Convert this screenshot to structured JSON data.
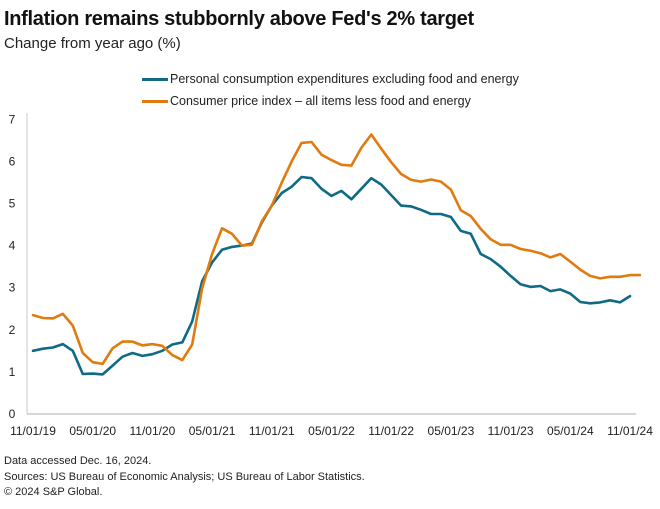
{
  "header": {
    "title": "Inflation remains stubbornly above Fed's 2% target",
    "subtitle": "Change from year ago (%)"
  },
  "footer": {
    "lines": [
      "Data accessed Dec. 16, 2024.",
      "Sources: US Bureau of Economic Analysis; US Bureau of Labor Statistics.",
      "© 2024 S&P Global."
    ]
  },
  "chart_data": {
    "type": "line",
    "title": "Inflation remains stubbornly above Fed's 2% target",
    "subtitle": "Change from year ago (%)",
    "xlabel": "",
    "ylabel": "",
    "ylim": [
      0,
      7
    ],
    "yticks": [
      "0",
      "1",
      "2",
      "3",
      "4",
      "5",
      "6",
      "7"
    ],
    "x_start": "2019-11",
    "x_frequency": "monthly",
    "xticks": [
      "11/01/19",
      "05/01/20",
      "11/01/20",
      "05/01/21",
      "11/01/21",
      "05/01/22",
      "11/01/22",
      "05/01/23",
      "11/01/23",
      "05/01/24",
      "11/01/24"
    ],
    "grid": false,
    "legend_position": "top-center",
    "series": [
      {
        "name": "Personal consumption expenditures excluding food and energy",
        "color": "#0e6a85",
        "values": [
          1.5,
          1.55,
          1.58,
          1.66,
          1.5,
          0.95,
          0.96,
          0.94,
          1.15,
          1.36,
          1.45,
          1.38,
          1.42,
          1.5,
          1.65,
          1.7,
          2.2,
          3.15,
          3.6,
          3.9,
          3.97,
          4.0,
          4.05,
          4.55,
          4.95,
          5.25,
          5.4,
          5.63,
          5.6,
          5.35,
          5.18,
          5.3,
          5.1,
          5.35,
          5.6,
          5.45,
          5.2,
          4.95,
          4.93,
          4.85,
          4.75,
          4.75,
          4.68,
          4.35,
          4.28,
          3.8,
          3.68,
          3.5,
          3.28,
          3.08,
          3.02,
          3.04,
          2.92,
          2.96,
          2.86,
          2.66,
          2.63,
          2.65,
          2.7,
          2.65,
          2.8
        ]
      },
      {
        "name": "Consumer price index – all items less food and energy",
        "color": "#e07b10",
        "values": [
          2.35,
          2.28,
          2.27,
          2.38,
          2.1,
          1.45,
          1.23,
          1.19,
          1.56,
          1.72,
          1.72,
          1.63,
          1.66,
          1.62,
          1.4,
          1.28,
          1.65,
          2.98,
          3.8,
          4.41,
          4.28,
          4.0,
          4.02,
          4.58,
          4.95,
          5.5,
          6.0,
          6.44,
          6.46,
          6.16,
          6.03,
          5.92,
          5.9,
          6.32,
          6.64,
          6.3,
          5.98,
          5.7,
          5.56,
          5.52,
          5.57,
          5.52,
          5.33,
          4.84,
          4.7,
          4.4,
          4.15,
          4.02,
          4.02,
          3.92,
          3.88,
          3.82,
          3.72,
          3.8,
          3.62,
          3.43,
          3.28,
          3.22,
          3.26,
          3.26,
          3.3,
          3.3
        ]
      }
    ]
  }
}
